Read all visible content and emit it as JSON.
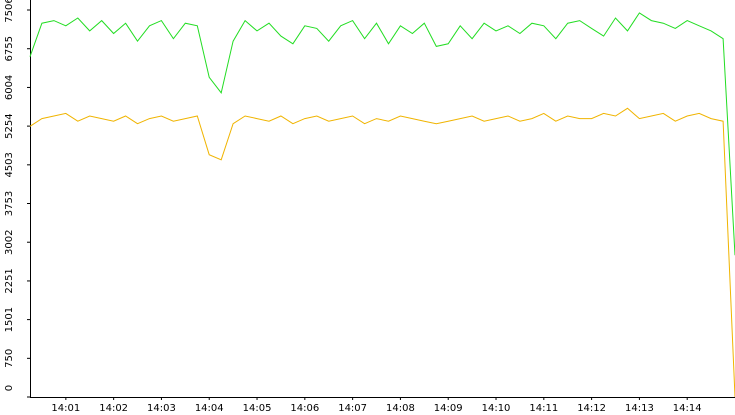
{
  "chart_data": {
    "type": "line",
    "categories": [
      null,
      null,
      null,
      "14:01",
      null,
      null,
      null,
      "14:02",
      null,
      null,
      null,
      "14:03",
      null,
      null,
      null,
      "14:04",
      null,
      null,
      null,
      "14:05",
      null,
      null,
      null,
      "14:06",
      null,
      null,
      null,
      "14:07",
      null,
      null,
      null,
      "14:08",
      null,
      null,
      null,
      "14:09",
      null,
      null,
      null,
      "14:10",
      null,
      null,
      null,
      "14:11",
      null,
      null,
      null,
      "14:12",
      null,
      null,
      null,
      "14:13",
      null,
      null,
      null,
      "14:14",
      null,
      null,
      null,
      null
    ],
    "series": [
      {
        "color": "#22dd22",
        "values": [
          6600,
          7250,
          7300,
          7200,
          7350,
          7100,
          7300,
          7050,
          7250,
          6900,
          7200,
          7300,
          6950,
          7250,
          7200,
          6200,
          5900,
          6900,
          7300,
          7100,
          7250,
          7000,
          6850,
          7200,
          7150,
          6900,
          7200,
          7300,
          6950,
          7250,
          6850,
          7200,
          7050,
          7250,
          6800,
          6850,
          7200,
          6950,
          7250,
          7100,
          7200,
          7050,
          7250,
          7200,
          6950,
          7250,
          7300,
          7150,
          7000,
          7350,
          7100,
          7450,
          7300,
          7250,
          7150,
          7300,
          7200,
          7100,
          6950,
          2750
        ]
      },
      {
        "color": "#f0b400",
        "values": [
          5250,
          5400,
          5450,
          5500,
          5350,
          5450,
          5400,
          5350,
          5450,
          5300,
          5400,
          5450,
          5350,
          5400,
          5450,
          4700,
          4600,
          5300,
          5450,
          5400,
          5350,
          5450,
          5300,
          5400,
          5450,
          5350,
          5400,
          5450,
          5300,
          5400,
          5350,
          5450,
          5400,
          5350,
          5300,
          5350,
          5400,
          5450,
          5350,
          5400,
          5450,
          5350,
          5400,
          5500,
          5350,
          5450,
          5400,
          5400,
          5500,
          5450,
          5600,
          5400,
          5450,
          5500,
          5350,
          5450,
          5500,
          5400,
          5350,
          0
        ]
      }
    ],
    "ylim": [
      0,
      7700
    ],
    "yticks": [
      0,
      750,
      1501,
      2251,
      3002,
      3753,
      4503,
      5254,
      6004,
      6755,
      7506
    ]
  }
}
